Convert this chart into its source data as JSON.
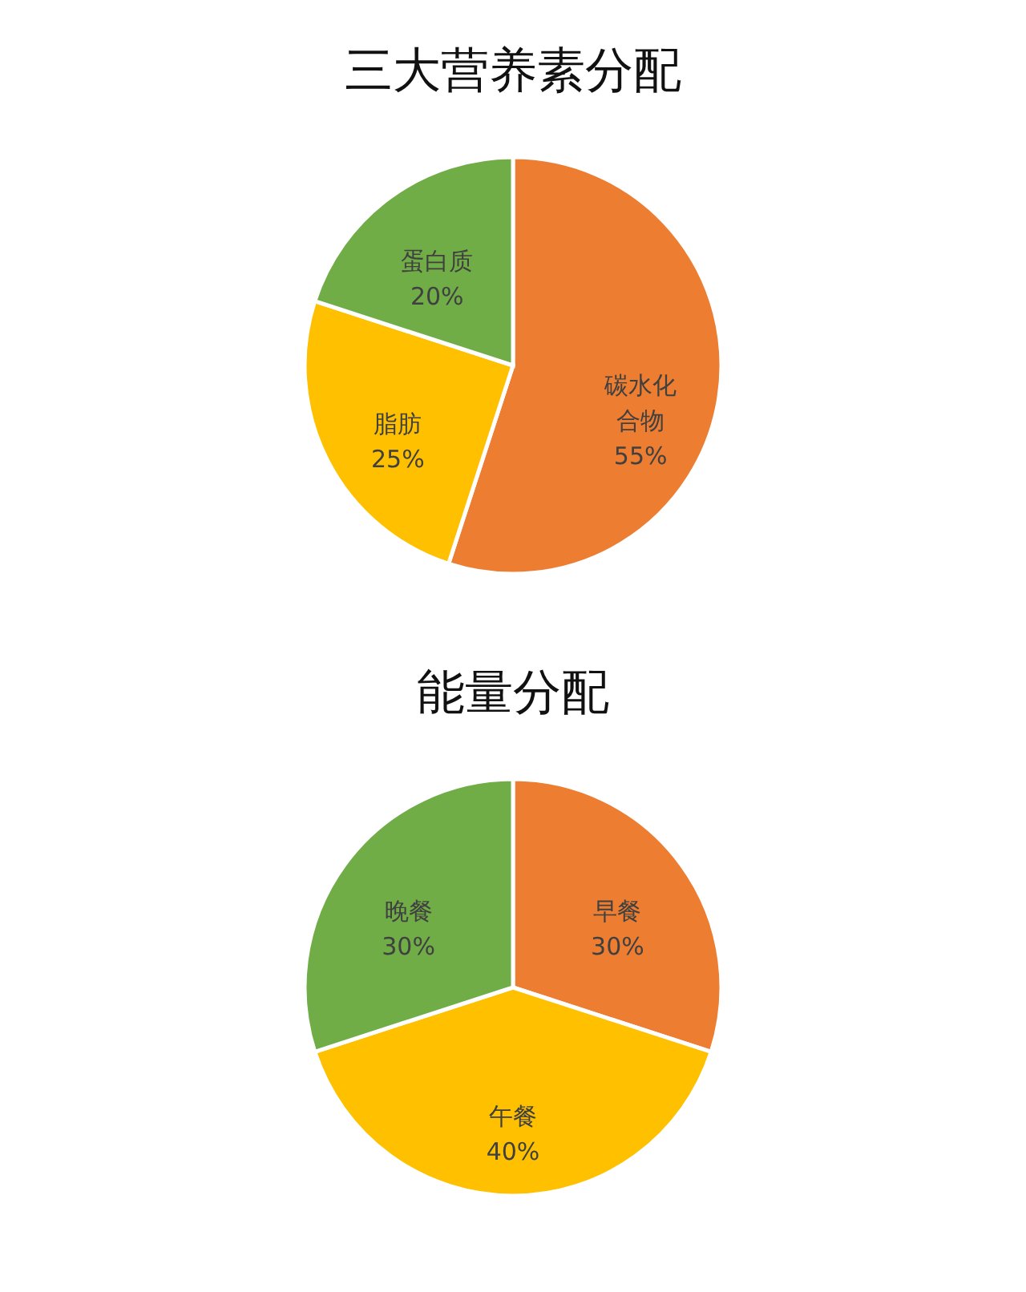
{
  "chart_data": [
    {
      "type": "pie",
      "title": "三大营养素分配",
      "categories": [
        "碳水化合物",
        "脂肪",
        "蛋白质"
      ],
      "values": [
        55,
        25,
        20
      ],
      "colors": [
        "#ed7d31",
        "#ffc000",
        "#70ad47"
      ],
      "value_labels": [
        "55%",
        "25%",
        "20%"
      ]
    },
    {
      "type": "pie",
      "title": "能量分配",
      "categories": [
        "早餐",
        "午餐",
        "晚餐"
      ],
      "values": [
        30,
        40,
        30
      ],
      "colors": [
        "#ed7d31",
        "#ffc000",
        "#70ad47"
      ],
      "value_labels": [
        "30%",
        "40%",
        "30%"
      ]
    }
  ]
}
